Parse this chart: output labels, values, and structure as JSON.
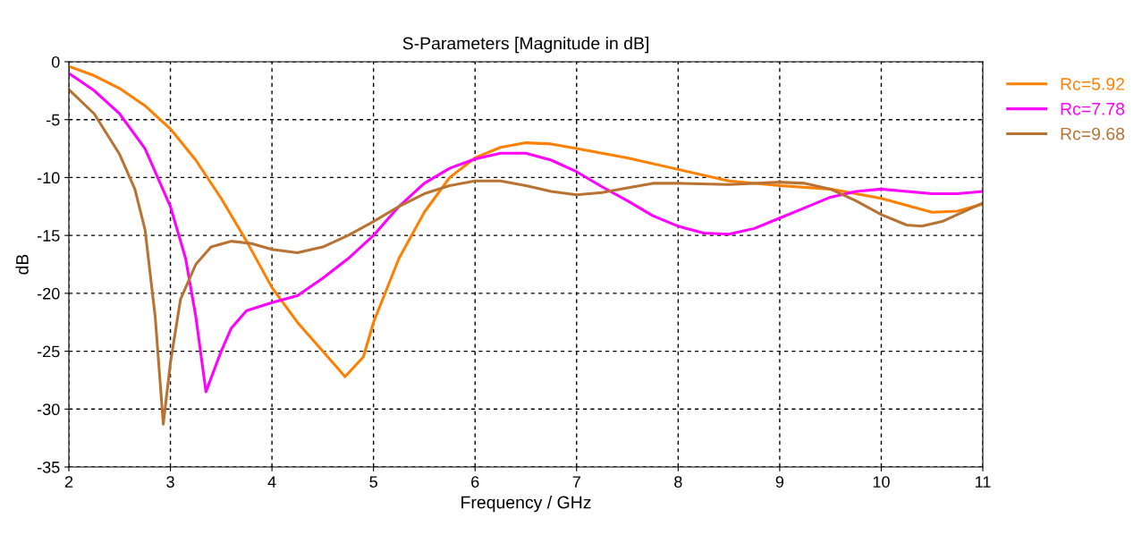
{
  "chart_data": {
    "type": "line",
    "title": "S-Parameters [Magnitude in dB]",
    "xlabel": "Frequency / GHz",
    "ylabel": "dB",
    "xlim": [
      2,
      11
    ],
    "xticks": [
      2,
      3,
      4,
      5,
      6,
      7,
      8,
      9,
      10,
      11
    ],
    "ylim": [
      -35,
      0
    ],
    "yticks": [
      -35,
      -30,
      -25,
      -20,
      -15,
      -10,
      -5,
      0
    ],
    "grid": true,
    "legend": "right",
    "line_style": "solid",
    "marker": "none",
    "series": [
      {
        "name": "Rc=5.92",
        "color": "#ff8000",
        "x": [
          2,
          2.25,
          2.5,
          2.75,
          3,
          3.25,
          3.5,
          3.75,
          4,
          4.25,
          4.5,
          4.72,
          4.9,
          5,
          5.25,
          5.5,
          5.75,
          6,
          6.25,
          6.5,
          6.75,
          7,
          7.5,
          8,
          8.5,
          9,
          9.5,
          10,
          10.5,
          10.75,
          11
        ],
        "values": [
          -0.4,
          -1.2,
          -2.3,
          -3.8,
          -5.8,
          -8.5,
          -11.8,
          -15.5,
          -19.5,
          -22.5,
          -25,
          -27.2,
          -25.5,
          -22.5,
          -17,
          -13,
          -10,
          -8.3,
          -7.4,
          -7.0,
          -7.1,
          -7.5,
          -8.3,
          -9.3,
          -10.3,
          -10.7,
          -11.0,
          -11.8,
          -13.0,
          -12.9,
          -12.3
        ]
      },
      {
        "name": "Rc=7.78",
        "color": "#ff00ff",
        "x": [
          2,
          2.25,
          2.5,
          2.75,
          3,
          3.15,
          3.25,
          3.35,
          3.5,
          3.6,
          3.75,
          4,
          4.25,
          4.5,
          4.75,
          5,
          5.25,
          5.5,
          5.75,
          6,
          6.25,
          6.5,
          6.75,
          7,
          7.25,
          7.5,
          7.75,
          8,
          8.25,
          8.5,
          8.75,
          9,
          9.25,
          9.5,
          9.75,
          10,
          10.25,
          10.5,
          10.75,
          11
        ],
        "values": [
          -1.0,
          -2.5,
          -4.5,
          -7.5,
          -12.5,
          -17,
          -22,
          -28.5,
          -25,
          -23,
          -21.5,
          -20.8,
          -20.2,
          -18.7,
          -17,
          -15,
          -12.5,
          -10.5,
          -9.2,
          -8.4,
          -7.9,
          -7.9,
          -8.5,
          -9.5,
          -10.8,
          -12,
          -13.3,
          -14.2,
          -14.8,
          -14.9,
          -14.4,
          -13.5,
          -12.6,
          -11.7,
          -11.2,
          -11.0,
          -11.2,
          -11.4,
          -11.4,
          -11.2
        ]
      },
      {
        "name": "Rc=9.68",
        "color": "#b87333",
        "x": [
          2,
          2.25,
          2.5,
          2.65,
          2.75,
          2.85,
          2.93,
          3.0,
          3.1,
          3.25,
          3.4,
          3.6,
          3.8,
          4.0,
          4.25,
          4.5,
          4.75,
          5,
          5.25,
          5.5,
          5.75,
          6,
          6.25,
          6.5,
          6.75,
          7,
          7.25,
          7.5,
          7.75,
          8,
          8.5,
          9,
          9.25,
          9.5,
          9.75,
          10,
          10.25,
          10.4,
          10.6,
          11
        ],
        "values": [
          -2.4,
          -4.5,
          -8,
          -11,
          -14.5,
          -22,
          -31.3,
          -26,
          -20.5,
          -17.5,
          -16.0,
          -15.5,
          -15.7,
          -16.2,
          -16.5,
          -16.0,
          -15.0,
          -13.8,
          -12.5,
          -11.4,
          -10.7,
          -10.3,
          -10.3,
          -10.7,
          -11.2,
          -11.5,
          -11.3,
          -10.9,
          -10.5,
          -10.5,
          -10.6,
          -10.4,
          -10.5,
          -11.0,
          -12.0,
          -13.2,
          -14.1,
          -14.2,
          -13.8,
          -12.2
        ]
      }
    ]
  }
}
